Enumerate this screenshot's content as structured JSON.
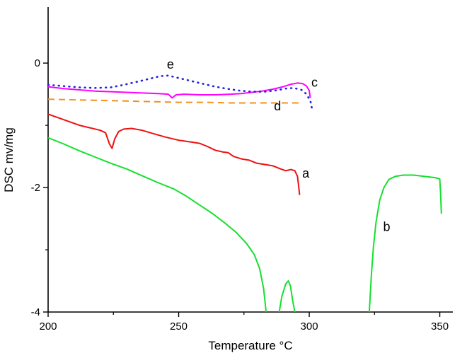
{
  "chart_data": {
    "type": "line",
    "title": "",
    "xlabel": "Temperature °C",
    "ylabel": "DSC mv/mg",
    "xlim": [
      200,
      355
    ],
    "ylim": [
      -4,
      0.9
    ],
    "x_ticks": [
      200,
      250,
      300,
      350
    ],
    "x_minor_ticks": [
      225,
      275,
      325
    ],
    "y_ticks": [
      0,
      -2,
      -4
    ],
    "y_minor_ticks": [
      -1,
      -3
    ],
    "grid": false,
    "legend": "none (curves labeled a-e inline)",
    "series": [
      {
        "name": "a",
        "color": "#ee1111",
        "style": "solid",
        "width": 2,
        "segments": [
          [
            [
              200,
              -0.82
            ],
            [
              204,
              -0.88
            ],
            [
              208,
              -0.94
            ],
            [
              212,
              -1.0
            ],
            [
              216,
              -1.04
            ],
            [
              220,
              -1.08
            ],
            [
              222,
              -1.12
            ],
            [
              223.5,
              -1.3
            ],
            [
              224.5,
              -1.37
            ],
            [
              225.5,
              -1.22
            ],
            [
              227,
              -1.1
            ],
            [
              229,
              -1.06
            ],
            [
              232,
              -1.05
            ],
            [
              236,
              -1.08
            ],
            [
              240,
              -1.13
            ],
            [
              245,
              -1.19
            ],
            [
              250,
              -1.24
            ],
            [
              255,
              -1.27
            ],
            [
              258,
              -1.29
            ],
            [
              261,
              -1.34
            ],
            [
              264,
              -1.4
            ],
            [
              267,
              -1.43
            ],
            [
              269,
              -1.44
            ],
            [
              271,
              -1.5
            ],
            [
              274,
              -1.54
            ],
            [
              277,
              -1.56
            ],
            [
              280,
              -1.61
            ],
            [
              283,
              -1.63
            ],
            [
              286,
              -1.65
            ],
            [
              289,
              -1.7
            ],
            [
              291,
              -1.73
            ],
            [
              293,
              -1.71
            ],
            [
              294.5,
              -1.73
            ],
            [
              295.5,
              -1.82
            ],
            [
              296,
              -2.0
            ],
            [
              296.3,
              -2.12
            ]
          ]
        ]
      },
      {
        "name": "b",
        "color": "#15e02e",
        "style": "solid",
        "width": 2,
        "segments": [
          [
            [
              200,
              -1.2
            ],
            [
              206,
              -1.3
            ],
            [
              212,
              -1.41
            ],
            [
              218,
              -1.51
            ],
            [
              224,
              -1.61
            ],
            [
              230,
              -1.7
            ],
            [
              236,
              -1.81
            ],
            [
              242,
              -1.92
            ],
            [
              248,
              -2.02
            ],
            [
              253,
              -2.14
            ],
            [
              258,
              -2.28
            ],
            [
              263,
              -2.42
            ],
            [
              268,
              -2.58
            ],
            [
              272,
              -2.72
            ],
            [
              276,
              -2.9
            ],
            [
              279,
              -3.08
            ],
            [
              281,
              -3.3
            ],
            [
              282.5,
              -3.62
            ],
            [
              283.5,
              -4.0
            ]
          ],
          [
            [
              288.5,
              -4.0
            ],
            [
              289.5,
              -3.75
            ],
            [
              291,
              -3.55
            ],
            [
              292,
              -3.5
            ],
            [
              292.8,
              -3.58
            ],
            [
              293.6,
              -3.8
            ],
            [
              294.5,
              -4.0
            ]
          ],
          [
            [
              323,
              -4.0
            ],
            [
              323.8,
              -3.4
            ],
            [
              324.6,
              -2.95
            ],
            [
              325.6,
              -2.55
            ],
            [
              327,
              -2.2
            ],
            [
              328.6,
              -2.0
            ],
            [
              330.5,
              -1.87
            ],
            [
              333,
              -1.82
            ],
            [
              336,
              -1.8
            ],
            [
              340,
              -1.8
            ],
            [
              344,
              -1.82
            ],
            [
              348,
              -1.84
            ],
            [
              350,
              -1.86
            ],
            [
              350.3,
              -2.1
            ],
            [
              350.6,
              -2.42
            ]
          ]
        ]
      },
      {
        "name": "c",
        "color": "#ff00ff",
        "style": "solid",
        "width": 2,
        "segments": [
          [
            [
              200,
              -0.38
            ],
            [
              206,
              -0.41
            ],
            [
              212,
              -0.43
            ],
            [
              218,
              -0.45
            ],
            [
              224,
              -0.46
            ],
            [
              230,
              -0.47
            ],
            [
              236,
              -0.48
            ],
            [
              242,
              -0.49
            ],
            [
              246,
              -0.5
            ],
            [
              247.5,
              -0.56
            ],
            [
              249,
              -0.51
            ],
            [
              252,
              -0.5
            ],
            [
              258,
              -0.51
            ],
            [
              264,
              -0.51
            ],
            [
              270,
              -0.5
            ],
            [
              274,
              -0.49
            ],
            [
              278,
              -0.47
            ],
            [
              282,
              -0.45
            ],
            [
              286,
              -0.42
            ],
            [
              290,
              -0.38
            ],
            [
              293,
              -0.34
            ],
            [
              295.5,
              -0.32
            ],
            [
              297.5,
              -0.33
            ],
            [
              299,
              -0.37
            ],
            [
              300,
              -0.44
            ],
            [
              300.4,
              -0.56
            ]
          ]
        ]
      },
      {
        "name": "d",
        "color": "#f59120",
        "style": "dashed",
        "width": 2,
        "segments": [
          [
            [
              200,
              -0.58
            ],
            [
              210,
              -0.59
            ],
            [
              220,
              -0.6
            ],
            [
              230,
              -0.61
            ],
            [
              240,
              -0.62
            ],
            [
              250,
              -0.63
            ],
            [
              260,
              -0.63
            ],
            [
              270,
              -0.64
            ],
            [
              280,
              -0.64
            ],
            [
              290,
              -0.64
            ],
            [
              297,
              -0.64
            ]
          ]
        ]
      },
      {
        "name": "e",
        "color": "#2222dd",
        "style": "dotted",
        "width": 2.6,
        "segments": [
          [
            [
              200,
              -0.35
            ],
            [
              206,
              -0.37
            ],
            [
              212,
              -0.39
            ],
            [
              218,
              -0.4
            ],
            [
              224,
              -0.39
            ],
            [
              229,
              -0.35
            ],
            [
              234,
              -0.3
            ],
            [
              239,
              -0.25
            ],
            [
              243,
              -0.21
            ],
            [
              246,
              -0.2
            ],
            [
              249,
              -0.23
            ],
            [
              253,
              -0.27
            ],
            [
              258,
              -0.32
            ],
            [
              263,
              -0.37
            ],
            [
              268,
              -0.41
            ],
            [
              273,
              -0.44
            ],
            [
              278,
              -0.46
            ],
            [
              283,
              -0.46
            ],
            [
              287,
              -0.44
            ],
            [
              291,
              -0.41
            ],
            [
              294,
              -0.4
            ],
            [
              297,
              -0.43
            ],
            [
              299,
              -0.5
            ],
            [
              300.5,
              -0.62
            ],
            [
              301.3,
              -0.78
            ]
          ]
        ]
      }
    ],
    "annotations": [
      {
        "text": "e",
        "x": 245.5,
        "y": -0.09
      },
      {
        "text": "c",
        "x": 300.8,
        "y": -0.38
      },
      {
        "text": "d",
        "x": 286.5,
        "y": -0.76
      },
      {
        "text": "a",
        "x": 297.3,
        "y": -1.84
      },
      {
        "text": "b",
        "x": 328.3,
        "y": -2.7
      }
    ],
    "axis_color": "#000000",
    "x_tick_labels": [
      "200",
      "250",
      "300",
      "350"
    ],
    "y_tick_labels": [
      "0",
      "-2",
      "-4"
    ]
  }
}
